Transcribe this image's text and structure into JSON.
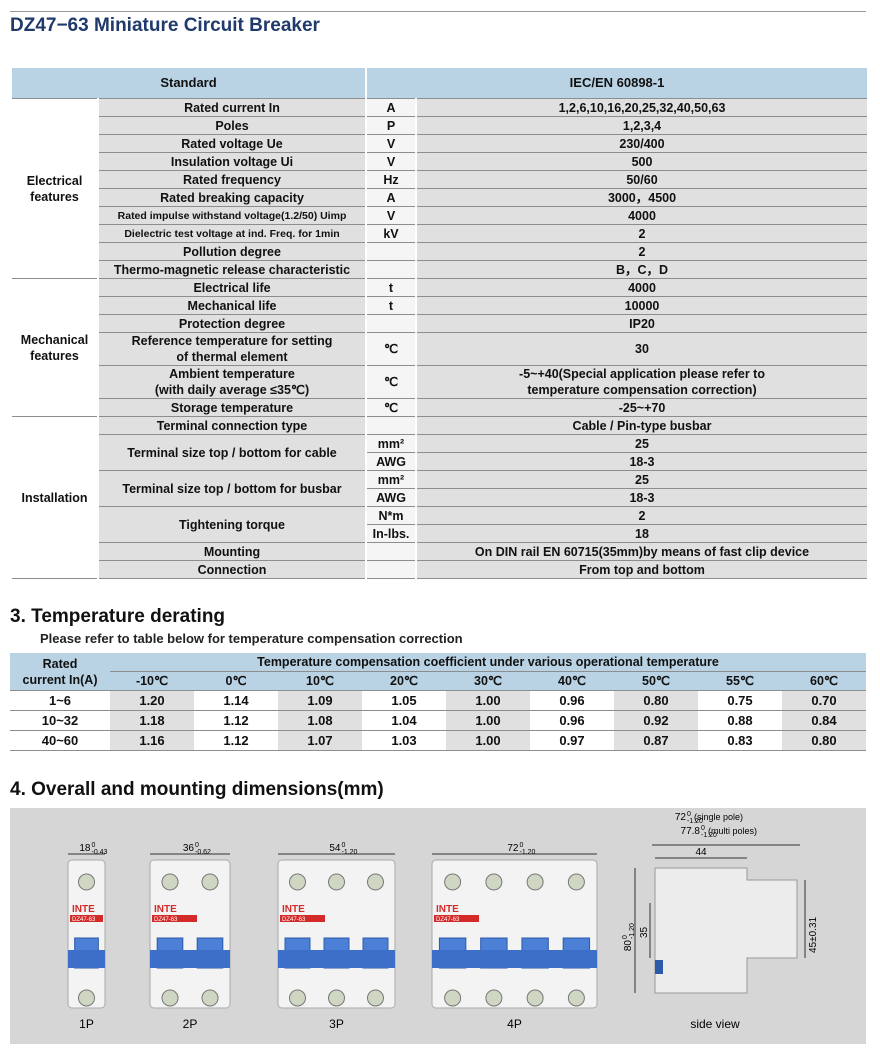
{
  "header": {
    "title": "DZ47−63 Miniature Circuit Breaker"
  },
  "spec_table": {
    "header": [
      "Standard",
      "IEC/EN 60898-1"
    ],
    "groups": [
      {
        "label": [
          "Electrical",
          "features"
        ],
        "rows": [
          {
            "param": [
              "Rated current In"
            ],
            "subrows": [
              {
                "unit": "A",
                "value": [
                  "1,2,6,10,16,20,25,32,40,50,63"
                ]
              }
            ]
          },
          {
            "param": [
              "Poles"
            ],
            "subrows": [
              {
                "unit": "P",
                "value": [
                  "1,2,3,4"
                ]
              }
            ]
          },
          {
            "param": [
              "Rated voltage Ue"
            ],
            "subrows": [
              {
                "unit": "V",
                "value": [
                  "230/400"
                ]
              }
            ]
          },
          {
            "param": [
              "Insulation voltage Ui"
            ],
            "subrows": [
              {
                "unit": "V",
                "value": [
                  "500"
                ]
              }
            ]
          },
          {
            "param": [
              "Rated frequency"
            ],
            "subrows": [
              {
                "unit": "Hz",
                "value": [
                  "50/60"
                ]
              }
            ]
          },
          {
            "param": [
              "Rated breaking capacity"
            ],
            "subrows": [
              {
                "unit": "A",
                "value": [
                  "3000，4500"
                ]
              }
            ]
          },
          {
            "param": [
              "Rated impulse withstand voltage(1.2/50) Uimp"
            ],
            "subrows": [
              {
                "unit": "V",
                "value": [
                  "4000"
                ]
              }
            ]
          },
          {
            "param": [
              "Dielectric test voltage at ind. Freq. for 1min"
            ],
            "subrows": [
              {
                "unit": "kV",
                "value": [
                  "2"
                ]
              }
            ]
          },
          {
            "param": [
              "Pollution degree"
            ],
            "subrows": [
              {
                "value": [
                  "2"
                ]
              }
            ]
          },
          {
            "param": [
              "Thermo-magnetic release characteristic"
            ],
            "subrows": [
              {
                "value": [
                  "B，C，D"
                ]
              }
            ]
          }
        ]
      },
      {
        "label": [
          "Mechanical",
          "features"
        ],
        "rows": [
          {
            "param": [
              "Electrical life"
            ],
            "subrows": [
              {
                "unit": "t",
                "value": [
                  "4000"
                ]
              }
            ]
          },
          {
            "param": [
              "Mechanical life"
            ],
            "subrows": [
              {
                "unit": "t",
                "value": [
                  "10000"
                ]
              }
            ]
          },
          {
            "param": [
              "Protection degree"
            ],
            "subrows": [
              {
                "value": [
                  "IP20"
                ]
              }
            ]
          },
          {
            "param": [
              "Reference temperature for setting",
              "of thermal element"
            ],
            "subrows": [
              {
                "unit": "℃",
                "value": [
                  "30"
                ]
              }
            ]
          },
          {
            "param": [
              "Ambient temperature",
              "(with daily average ≤35℃)"
            ],
            "subrows": [
              {
                "unit": "℃",
                "value": [
                  "-5~+40(Special application please refer to",
                  "temperature compensation correction)"
                ]
              }
            ]
          },
          {
            "param": [
              "Storage temperature"
            ],
            "subrows": [
              {
                "unit": "℃",
                "value": [
                  "-25~+70"
                ]
              }
            ]
          }
        ]
      },
      {
        "label": [
          "Installation"
        ],
        "rows": [
          {
            "param": [
              "Terminal connection type"
            ],
            "subrows": [
              {
                "value": [
                  "Cable / Pin-type busbar"
                ]
              }
            ]
          },
          {
            "param": [
              "Terminal size top / bottom for cable"
            ],
            "subrows": [
              {
                "unit": "mm²",
                "value": [
                  "25"
                ]
              },
              {
                "unit": "AWG",
                "value": [
                  "18-3"
                ]
              }
            ]
          },
          {
            "param": [
              "Terminal size top / bottom for busbar"
            ],
            "subrows": [
              {
                "unit": "mm²",
                "value": [
                  "25"
                ]
              },
              {
                "unit": "AWG",
                "value": [
                  "18-3"
                ]
              }
            ]
          },
          {
            "param": [
              "Tightening torque"
            ],
            "subrows": [
              {
                "unit": "N*m",
                "value": [
                  "2"
                ]
              },
              {
                "unit": "In-lbs.",
                "value": [
                  "18"
                ]
              }
            ]
          },
          {
            "param": [
              "Mounting"
            ],
            "subrows": [
              {
                "value": [
                  "On DIN rail EN 60715(35mm)by means of fast clip device"
                ]
              }
            ]
          },
          {
            "param": [
              "Connection"
            ],
            "subrows": [
              {
                "value": [
                  "From top and bottom"
                ]
              }
            ]
          }
        ]
      }
    ]
  },
  "temperature": {
    "title": "3. Temperature derating",
    "note": "Please refer to table below for temperature compensation correction",
    "corner": [
      "Rated",
      "current In(A)"
    ],
    "group_header": "Temperature compensation coefficient under various operational temperature",
    "columns": [
      "-10℃",
      "0℃",
      "10℃",
      "20℃",
      "30℃",
      "40℃",
      "50℃",
      "55℃",
      "60℃"
    ],
    "rows": [
      {
        "current": "1~6",
        "values": [
          "1.20",
          "1.14",
          "1.09",
          "1.05",
          "1.00",
          "0.96",
          "0.80",
          "0.75",
          "0.70"
        ]
      },
      {
        "current": "10~32",
        "values": [
          "1.18",
          "1.12",
          "1.08",
          "1.04",
          "1.00",
          "0.96",
          "0.92",
          "0.88",
          "0.84"
        ]
      },
      {
        "current": "40~60",
        "values": [
          "1.16",
          "1.12",
          "1.07",
          "1.03",
          "1.00",
          "0.97",
          "0.87",
          "0.83",
          "0.80"
        ]
      }
    ]
  },
  "dimensions": {
    "title": "4. Overall and mounting dimensions(mm)",
    "brand": "INTE",
    "model": "DZ47-63",
    "devices": [
      {
        "label": "1P",
        "width": {
          "nominal": "18",
          "upper": "0",
          "lower": "-0.43"
        }
      },
      {
        "label": "2P",
        "width": {
          "nominal": "36",
          "upper": "0",
          "lower": "-0.62"
        }
      },
      {
        "label": "3P",
        "width": {
          "nominal": "54",
          "upper": "0",
          "lower": "-1.20"
        }
      },
      {
        "label": "4P",
        "width": {
          "nominal": "72",
          "upper": "0",
          "lower": "-1.20"
        }
      }
    ],
    "side_view": {
      "label": "side view",
      "depth_single": {
        "nominal": "72",
        "upper": "0",
        "lower": "-1.20",
        "note": "(single pole)"
      },
      "depth_multi": {
        "nominal": "77.8",
        "upper": "0",
        "lower": "-1.20",
        "note": "(multi poles)"
      },
      "top": "44",
      "rail": "35",
      "height": {
        "nominal": "80",
        "upper": "0",
        "lower": "-1.20"
      },
      "front": "45±0.31"
    }
  }
}
